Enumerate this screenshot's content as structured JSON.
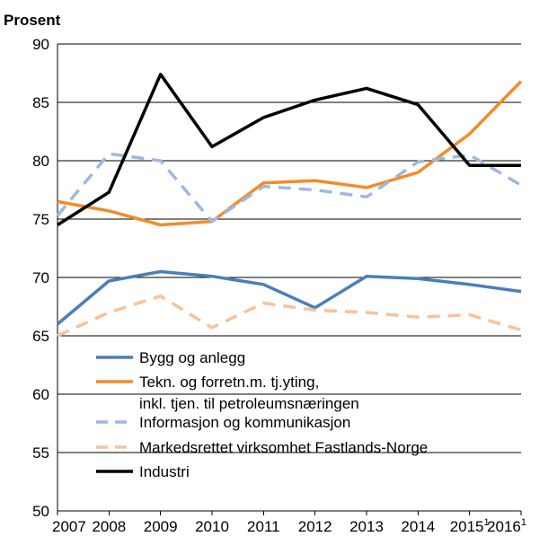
{
  "chart_data": {
    "type": "line",
    "unit_label": "Prosent",
    "x": [
      "2007",
      "2008",
      "2009",
      "2010",
      "2011",
      "2012",
      "2013",
      "2014",
      "2015",
      "2016"
    ],
    "x_superscripts": [
      "",
      "",
      "",
      "",
      "",
      "",
      "",
      "",
      "1",
      "1"
    ],
    "y_ticks": [
      "50",
      "55",
      "60",
      "65",
      "70",
      "75",
      "80",
      "85",
      "90"
    ],
    "ylim": [
      50,
      90
    ],
    "grid": true,
    "legend_placement": "lower-center",
    "series": [
      {
        "name": "Bygg og anlegg",
        "name_lines": [
          "Bygg og anlegg"
        ],
        "color": "#4a7ebb",
        "dash": "solid",
        "values": [
          66.0,
          69.7,
          70.5,
          70.1,
          69.4,
          67.4,
          70.1,
          69.9,
          69.4,
          68.8
        ]
      },
      {
        "name": "Tekn. og forretn.m. tj.yting, inkl. tjen. til petroleumsnæringen",
        "name_lines": [
          "Tekn. og forretn.m. tj.yting,",
          "inkl. tjen. til petroleumsnæringen"
        ],
        "color": "#f28c28",
        "dash": "solid",
        "values": [
          76.5,
          75.7,
          74.5,
          74.8,
          78.1,
          78.3,
          77.7,
          79.0,
          82.3,
          86.8
        ]
      },
      {
        "name": "Informasjon og kommunikasjon",
        "name_lines": [
          "Informasjon og kommunikasjon"
        ],
        "color": "#9fb8e0",
        "dash": "dashed",
        "values": [
          75.3,
          80.6,
          80.0,
          74.8,
          77.8,
          77.5,
          76.9,
          79.9,
          80.5,
          77.9
        ]
      },
      {
        "name": "Markedsrettet virksomhet Fastlands-Norge",
        "name_lines": [
          "Markedsrettet virksomhet Fastlands-Norge"
        ],
        "color": "#f8c29b",
        "dash": "dashed",
        "values": [
          65.0,
          67.0,
          68.4,
          65.7,
          67.8,
          67.2,
          67.0,
          66.6,
          66.8,
          65.5
        ]
      },
      {
        "name": "Industri",
        "name_lines": [
          "Industri"
        ],
        "color": "#000000",
        "dash": "solid",
        "values": [
          74.5,
          77.3,
          87.4,
          81.2,
          83.7,
          85.2,
          86.2,
          84.8,
          79.6,
          79.6
        ]
      }
    ]
  }
}
